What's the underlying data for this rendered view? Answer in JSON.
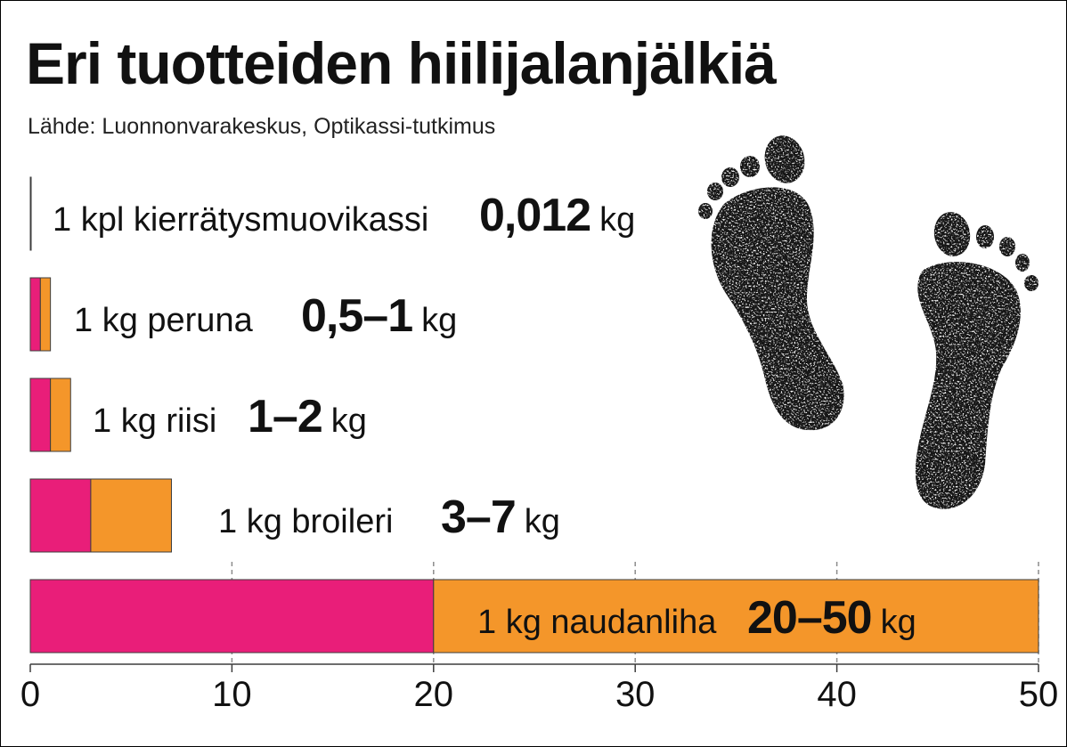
{
  "colors": {
    "lower_bound": "#e91e79",
    "range": "#f4962a",
    "outline": "#3d3d3d",
    "text": "#111111",
    "grid": "#8c8c8c",
    "ink": "#141414"
  },
  "decoration": {
    "icon": "footprints-icon"
  },
  "chart_data": {
    "type": "bar",
    "orientation": "horizontal",
    "title": "Eri tuotteiden hiilijalanjälkiä",
    "subtitle": "Lähde: Luonnonvarakeskus, Optikassi-tutkimus",
    "xlabel": "",
    "ylabel": "",
    "unit": "kg",
    "xlim": [
      0,
      50
    ],
    "xticks": [
      0,
      10,
      20,
      30,
      40,
      50
    ],
    "xtick_labels": [
      "0",
      "10",
      "20",
      "30",
      "40",
      "50"
    ],
    "grid": true,
    "legend": "none",
    "categories": [
      "1 kpl kierrätysmuovikassi",
      "1 kg peruna",
      "1 kg riisi",
      "1 kg broileri",
      "1 kg naudanliha"
    ],
    "ranges": [
      [
        0.012,
        0.012
      ],
      [
        0.5,
        1
      ],
      [
        1,
        2
      ],
      [
        3,
        7
      ],
      [
        20,
        50
      ]
    ],
    "value_labels": [
      "0,012",
      "0,5–1",
      "1–2",
      "3–7",
      "20–50"
    ]
  }
}
